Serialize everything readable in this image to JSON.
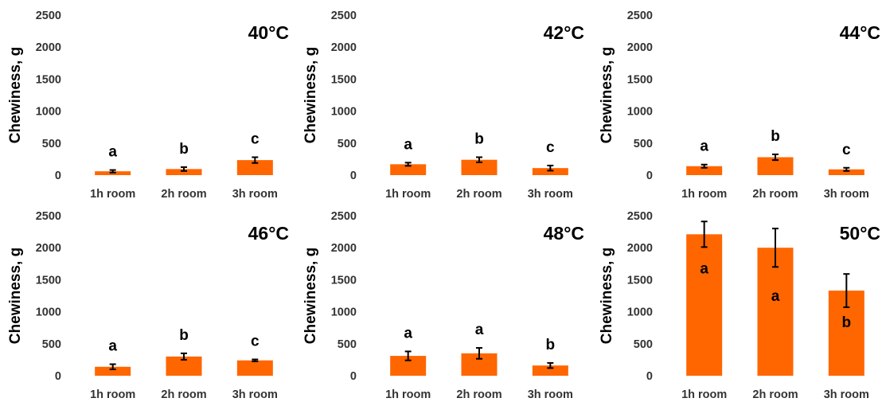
{
  "colors": {
    "bar": "#ff6600",
    "error_bar": "#000000",
    "text": "#000000",
    "tick_text": "#333333"
  },
  "chart_data": [
    {
      "type": "bar",
      "title": "40°C",
      "ylabel": "Chewiness, g",
      "xlabel": "",
      "categories": [
        "1h room",
        "2h room",
        "3h room"
      ],
      "values": [
        60,
        95,
        235
      ],
      "errors": [
        20,
        30,
        45
      ],
      "letters": [
        "a",
        "b",
        "c"
      ],
      "ylim": [
        0,
        2500
      ],
      "yticks": [
        0,
        500,
        1000,
        1500,
        2000,
        2500
      ],
      "grid": false,
      "legend": false
    },
    {
      "type": "bar",
      "title": "42°C",
      "ylabel": "Chewiness, g",
      "xlabel": "",
      "categories": [
        "1h room",
        "2h room",
        "3h room"
      ],
      "values": [
        170,
        240,
        110
      ],
      "errors": [
        25,
        40,
        40
      ],
      "letters": [
        "a",
        "b",
        "c"
      ],
      "ylim": [
        0,
        2500
      ],
      "yticks": [
        0,
        500,
        1000,
        1500,
        2000,
        2500
      ],
      "grid": false,
      "legend": false
    },
    {
      "type": "bar",
      "title": "44°C",
      "ylabel": "Chewiness, g",
      "xlabel": "",
      "categories": [
        "1h room",
        "2h room",
        "3h room"
      ],
      "values": [
        140,
        280,
        90
      ],
      "errors": [
        25,
        45,
        25
      ],
      "letters": [
        "a",
        "b",
        "c"
      ],
      "ylim": [
        0,
        2500
      ],
      "yticks": [
        0,
        500,
        1000,
        1500,
        2000,
        2500
      ],
      "grid": false,
      "legend": false
    },
    {
      "type": "bar",
      "title": "46°C",
      "ylabel": "Chewiness, g",
      "xlabel": "",
      "categories": [
        "1h room",
        "2h room",
        "3h room"
      ],
      "values": [
        140,
        300,
        240
      ],
      "errors": [
        40,
        50,
        15
      ],
      "letters": [
        "a",
        "b",
        "c"
      ],
      "ylim": [
        0,
        2500
      ],
      "yticks": [
        0,
        500,
        1000,
        1500,
        2000,
        2500
      ],
      "grid": false,
      "legend": false
    },
    {
      "type": "bar",
      "title": "48°C",
      "ylabel": "Chewiness, g",
      "xlabel": "",
      "categories": [
        "1h room",
        "2h room",
        "3h room"
      ],
      "values": [
        310,
        350,
        160
      ],
      "errors": [
        70,
        85,
        40
      ],
      "letters": [
        "a",
        "a",
        "b"
      ],
      "ylim": [
        0,
        2500
      ],
      "yticks": [
        0,
        500,
        1000,
        1500,
        2000,
        2500
      ],
      "grid": false,
      "legend": false
    },
    {
      "type": "bar",
      "title": "50°C",
      "ylabel": "Chewiness, g",
      "xlabel": "",
      "categories": [
        "1h room",
        "2h room",
        "3h room"
      ],
      "values": [
        2210,
        2000,
        1330
      ],
      "errors": [
        200,
        300,
        260
      ],
      "letters": [
        "a",
        "a",
        "b"
      ],
      "letter_position": "inside",
      "ylim": [
        0,
        2500
      ],
      "yticks": [
        0,
        500,
        1000,
        1500,
        2000,
        2500
      ],
      "grid": false,
      "legend": false
    }
  ]
}
